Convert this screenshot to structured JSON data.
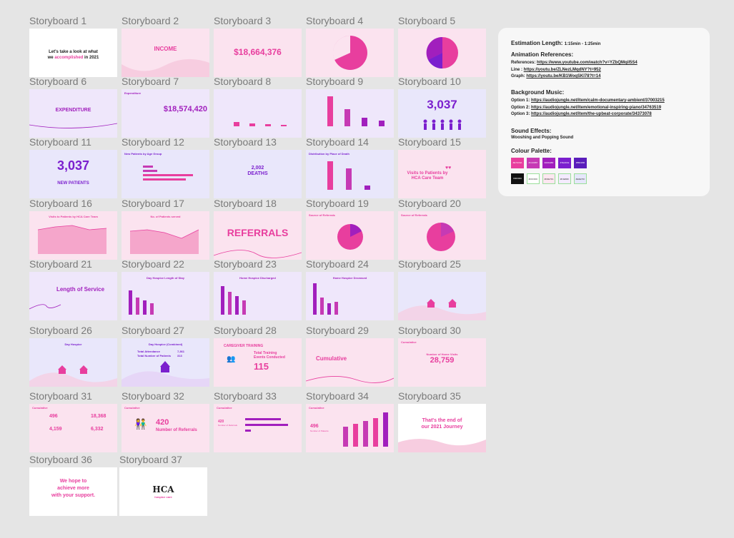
{
  "boards": {
    "b1": {
      "label": "Storyboard 1",
      "line1": "Let's take a look at what",
      "line2a": "we ",
      "line2b": "accomplished",
      "line2c": " in 2021"
    },
    "b2": {
      "label": "Storyboard 2",
      "title": "INCOME"
    },
    "b3": {
      "label": "Storyboard 3",
      "value": "$18,664,376"
    },
    "b4": {
      "label": "Storyboard 4"
    },
    "b5": {
      "label": "Storyboard 5"
    },
    "b6": {
      "label": "Storyboard 6",
      "title": "EXPENDITURE"
    },
    "b7": {
      "label": "Storyboard 7",
      "value": "$18,574,420",
      "small": "Expenditure"
    },
    "b8": {
      "label": "Storyboard 8"
    },
    "b9": {
      "label": "Storyboard 9"
    },
    "b10": {
      "label": "Storyboard 10",
      "value": "3,037"
    },
    "b11": {
      "label": "Storyboard 11",
      "value": "3,037",
      "sub": "NEW PATIENTS"
    },
    "b12": {
      "label": "Storyboard 12",
      "small": "New Patients by Age Group"
    },
    "b13": {
      "label": "Storyboard 13",
      "value": "2,002",
      "sub": "DEATHS"
    },
    "b14": {
      "label": "Storyboard 14",
      "small": "Distribution by Place of Death"
    },
    "b15": {
      "label": "Storyboard 15",
      "title": "Visits to Patients by HCA Care Team"
    },
    "b16": {
      "label": "Storyboard 16",
      "title": "Visits to Patients by HCA Care Team"
    },
    "b17": {
      "label": "Storyboard 17",
      "title": "No. of Patients served"
    },
    "b18": {
      "label": "Storyboard 18",
      "title": "REFERRALS"
    },
    "b19": {
      "label": "Storyboard 19",
      "small": "Source of Referrals"
    },
    "b20": {
      "label": "Storyboard 20",
      "small": "Source of Referrals"
    },
    "b21": {
      "label": "Storyboard 21",
      "title": "Length of Service"
    },
    "b22": {
      "label": "Storyboard 22",
      "title": "Day Hospice Length of Stay"
    },
    "b23": {
      "label": "Storyboard 23",
      "title": "Home Hospice Discharged"
    },
    "b24": {
      "label": "Storyboard 24",
      "title": "Home Hospice Deceased"
    },
    "b25": {
      "label": "Storyboard 25"
    },
    "b26": {
      "label": "Storyboard 26",
      "title": "Day Hospice"
    },
    "b27": {
      "label": "Storyboard 27",
      "title": "Day Hospice (Combined)",
      "row1": "Total Attendance",
      "row2": "Total Number of Patients",
      "val1": "7,361",
      "val2": "313"
    },
    "b28": {
      "label": "Storyboard 28",
      "title": "CAREGIVER TRAINING",
      "line1": "Total Training",
      "line2": "Events Conducted",
      "value": "115"
    },
    "b29": {
      "label": "Storyboard 29",
      "title": "Cumulative"
    },
    "b30": {
      "label": "Storyboard 30",
      "small": "Cumulative",
      "line": "Number of Home Visits",
      "value": "28,759"
    },
    "b31": {
      "label": "Storyboard 31",
      "small": "Cumulative",
      "v1": "496",
      "v2": "18,368",
      "v3": "4,159",
      "v4": "6,332"
    },
    "b32": {
      "label": "Storyboard 32",
      "small": "Cumulative",
      "value": "420",
      "sub": "Number of Referrals"
    },
    "b33": {
      "label": "Storyboard 33",
      "small": "Cumulative",
      "value": "420",
      "sub": "Number of Referrals"
    },
    "b34": {
      "label": "Storyboard 34",
      "small": "Cumulative",
      "value": "496",
      "sub": "Number of Patients"
    },
    "b35": {
      "label": "Storyboard 35",
      "line1": "That's the end of",
      "line2": "our 2021 Journey"
    },
    "b36": {
      "label": "Storyboard 36",
      "line1": "We hope to",
      "line2": "achieve more",
      "line3": "with your support."
    },
    "b37": {
      "label": "Storyboard 37",
      "logo_text": "HCA",
      "logo_sub": "hospice care"
    }
  },
  "info": {
    "estimation_label": "Estimation Length:",
    "estimation_value": "1:15min - 1:25min",
    "anim_heading": "Animation References:",
    "anim": [
      {
        "k": "References:",
        "v": "https://www.youtube.com/watch?v=YZbQMqil5S4"
      },
      {
        "k": "Line :",
        "v": "https://youtu.be/ZLNezLMqdNY?t=952"
      },
      {
        "k": "Graph:",
        "v": "https://youtu.be/KB1WoqSKI78?t=14"
      }
    ],
    "bg_heading": "Background Music:",
    "bg": [
      {
        "k": "Option 1:",
        "v": "https://audiojungle.net/item/calm-documentary-ambient/37003215"
      },
      {
        "k": "Option 2:",
        "v": "https://audiojungle.net/item/emotional-inspiring-piano/34763519"
      },
      {
        "k": "Option 3:",
        "v": "https://audiojungle.net/item/the-upbeat-corporate/34373078"
      }
    ],
    "sfx_heading": "Sound Effects:",
    "sfx_value": "Wooshing and Popping Sound",
    "palette_heading": "Colour Palette:",
    "palette": [
      {
        "name": "#E74C9A",
        "color": "#e83e9e"
      },
      {
        "name": "#C13FB7",
        "color": "#c63ab4"
      },
      {
        "name": "#A61EBF",
        "color": "#a11fbd"
      },
      {
        "name": "#7E22CE",
        "color": "#7b1fce"
      },
      {
        "name": "#5B21B6",
        "color": "#5a1dbb"
      },
      {
        "name": "#000000",
        "color": "#111111"
      },
      {
        "name": "#FFFFFF",
        "color": "#ffffff"
      },
      {
        "name": "#FDE7F1",
        "color": "#fde7f1"
      },
      {
        "name": "#F3E8FF",
        "color": "#f4ebff"
      },
      {
        "name": "#E0E7FF",
        "color": "#e6e7fb"
      }
    ]
  }
}
